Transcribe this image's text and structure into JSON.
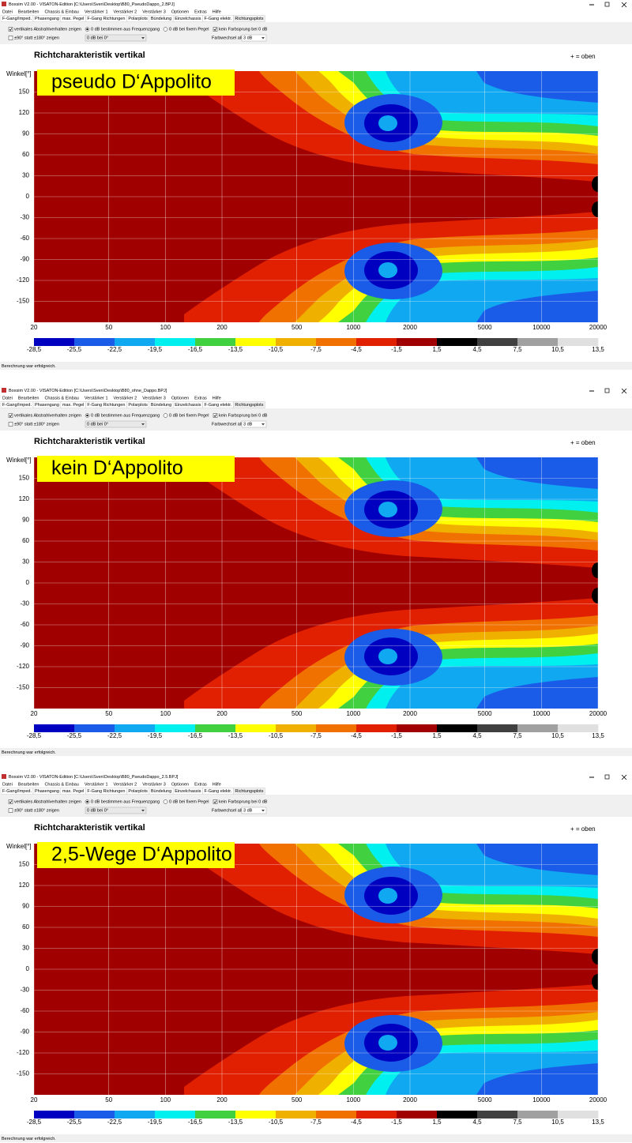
{
  "windows": [
    {
      "title_bar": "Boxsim V2.00 - VISATON-Edition [C:\\Users\\Sven\\Desktop\\B80_PseudoDappo_2.BPJ]",
      "menu": [
        "Datei",
        "Bearbeiten",
        "Chassis & Einbau",
        "Verstärker 1",
        "Verstärker 2",
        "Verstärker 3",
        "Optionen",
        "Extras",
        "Hilfe"
      ],
      "tabs": [
        "F-Gang/Imped.",
        "Phasengang",
        "max. Pegel",
        "F-Gang Richtungen",
        "Polarplots",
        "Bündelung",
        "Einzelchassis",
        "F-Gang elektr.",
        "Richtungsplots"
      ],
      "options": {
        "vertical": "vertikales Abstrahlverhalten zeigen",
        "ninety": "±90° statt ±180° zeigen",
        "zero_from_response": "0 dB bestimmen aus Frequenzgang",
        "zero_reference": "0 dB bei 0°",
        "zero_fixed": "0 dB bei fixem Pegel",
        "no_color_jump": "kein Farbsprung bei 0 dB",
        "color_step_label": "Farbwechsel  alle",
        "color_step": "3 dB"
      },
      "chart": {
        "title": "Richtcharakteristik vertikal",
        "orientation_note": "+ = oben",
        "y_label": "Winkel[°]",
        "overlay": "pseudo D‘Appolito",
        "ylim": [
          -180,
          180
        ],
        "yticks": [
          150,
          120,
          90,
          60,
          30,
          0,
          -30,
          -60,
          -90,
          -120,
          -150
        ],
        "xlim": [
          20,
          20000
        ],
        "xticks": [
          20,
          50,
          100,
          200,
          500,
          1000,
          2000,
          5000,
          10000,
          20000
        ],
        "xscale": "log",
        "colorbar": {
          "labels": [
            "-28,5",
            "-25,5",
            "-22,5",
            "-19,5",
            "-16,5",
            "-13,5",
            "-10,5",
            "-7,5",
            "-4,5",
            "-1,5",
            "1,5",
            "4,5",
            "7,5",
            "10,5",
            "13,5"
          ],
          "colors": [
            "#0000c0",
            "#1a5ce8",
            "#10a8f0",
            "#00f0f0",
            "#40d040",
            "#ffff00",
            "#f0b000",
            "#f07000",
            "#e02000",
            "#a00000",
            "#000000",
            "#404040",
            "#a0a0a0",
            "#e0e0e0"
          ]
        }
      },
      "status": "Berechnung war erfolgreich."
    },
    {
      "title_bar": "Boxsim V2.00 - VISATON-Edition [C:\\Users\\Sven\\Desktop\\B80_ohne_Dappo.BPJ]",
      "menu": [
        "Datei",
        "Bearbeiten",
        "Chassis & Einbau",
        "Verstärker 1",
        "Verstärker 2",
        "Verstärker 3",
        "Optionen",
        "Extras",
        "Hilfe"
      ],
      "tabs": [
        "F-Gang/Imped.",
        "Phasengang",
        "max. Pegel",
        "F-Gang Richtungen",
        "Polarplots",
        "Bündelung",
        "Einzelchassis",
        "F-Gang elektr.",
        "Richtungsplots"
      ],
      "options": {
        "vertical": "vertikales Abstrahlverhalten zeigen",
        "ninety": "±90° statt ±180° zeigen",
        "zero_from_response": "0 dB bestimmen aus Frequenzgang",
        "zero_reference": "0 dB bei 0°",
        "zero_fixed": "0 dB bei fixem Pegel",
        "no_color_jump": "kein Farbsprung bei 0 dB",
        "color_step_label": "Farbwechsel  alle",
        "color_step": "3 dB"
      },
      "chart": {
        "title": "Richtcharakteristik vertikal",
        "orientation_note": "+ = oben",
        "y_label": "Winkel[°]",
        "overlay": "kein D‘Appolito",
        "ylim": [
          -180,
          180
        ],
        "yticks": [
          150,
          120,
          90,
          60,
          30,
          0,
          -30,
          -60,
          -90,
          -120,
          -150
        ],
        "xlim": [
          20,
          20000
        ],
        "xticks": [
          20,
          50,
          100,
          200,
          500,
          1000,
          2000,
          5000,
          10000,
          20000
        ],
        "xscale": "log",
        "colorbar": {
          "labels": [
            "-28,5",
            "-25,5",
            "-22,5",
            "-19,5",
            "-16,5",
            "-13,5",
            "-10,5",
            "-7,5",
            "-4,5",
            "-1,5",
            "1,5",
            "4,5",
            "7,5",
            "10,5",
            "13,5"
          ],
          "colors": [
            "#0000c0",
            "#1a5ce8",
            "#10a8f0",
            "#00f0f0",
            "#40d040",
            "#ffff00",
            "#f0b000",
            "#f07000",
            "#e02000",
            "#a00000",
            "#000000",
            "#404040",
            "#a0a0a0",
            "#e0e0e0"
          ]
        }
      },
      "status": "Berechnung war erfolgreich."
    },
    {
      "title_bar": "Boxsim V2.00 - VISATON-Edition [C:\\Users\\Sven\\Desktop\\B80_PseudoDappo_2.5.BPJ]",
      "menu": [
        "Datei",
        "Bearbeiten",
        "Chassis & Einbau",
        "Verstärker 1",
        "Verstärker 2",
        "Verstärker 3",
        "Optionen",
        "Extras",
        "Hilfe"
      ],
      "tabs": [
        "F-Gang/Imped.",
        "Phasengang",
        "max. Pegel",
        "F-Gang Richtungen",
        "Polarplots",
        "Bündelung",
        "Einzelchassis",
        "F-Gang elektr.",
        "Richtungsplots"
      ],
      "options": {
        "vertical": "vertikales Abstrahlverhalten zeigen",
        "ninety": "±90° statt ±180° zeigen",
        "zero_from_response": "0 dB bestimmen aus Frequenzgang",
        "zero_reference": "0 dB bei 0°",
        "zero_fixed": "0 dB bei fixem Pegel",
        "no_color_jump": "kein Farbsprung bei 0 dB",
        "color_step_label": "Farbwechsel  alle",
        "color_step": "3 dB"
      },
      "chart": {
        "title": "Richtcharakteristik vertikal",
        "orientation_note": "+ = oben",
        "y_label": "Winkel[°]",
        "overlay": "2,5-Wege D‘Appolito",
        "ylim": [
          -180,
          180
        ],
        "yticks": [
          150,
          120,
          90,
          60,
          30,
          0,
          -30,
          -60,
          -90,
          -120,
          -150
        ],
        "xlim": [
          20,
          20000
        ],
        "xticks": [
          20,
          50,
          100,
          200,
          500,
          1000,
          2000,
          5000,
          10000,
          20000
        ],
        "xscale": "log",
        "colorbar": {
          "labels": [
            "-28,5",
            "-25,5",
            "-22,5",
            "-19,5",
            "-16,5",
            "-13,5",
            "-10,5",
            "-7,5",
            "-4,5",
            "-1,5",
            "1,5",
            "4,5",
            "7,5",
            "10,5",
            "13,5"
          ],
          "colors": [
            "#0000c0",
            "#1a5ce8",
            "#10a8f0",
            "#00f0f0",
            "#40d040",
            "#ffff00",
            "#f0b000",
            "#f07000",
            "#e02000",
            "#a00000",
            "#000000",
            "#404040",
            "#a0a0a0",
            "#e0e0e0"
          ]
        }
      },
      "status": "Berechnung war erfolgreich."
    }
  ]
}
